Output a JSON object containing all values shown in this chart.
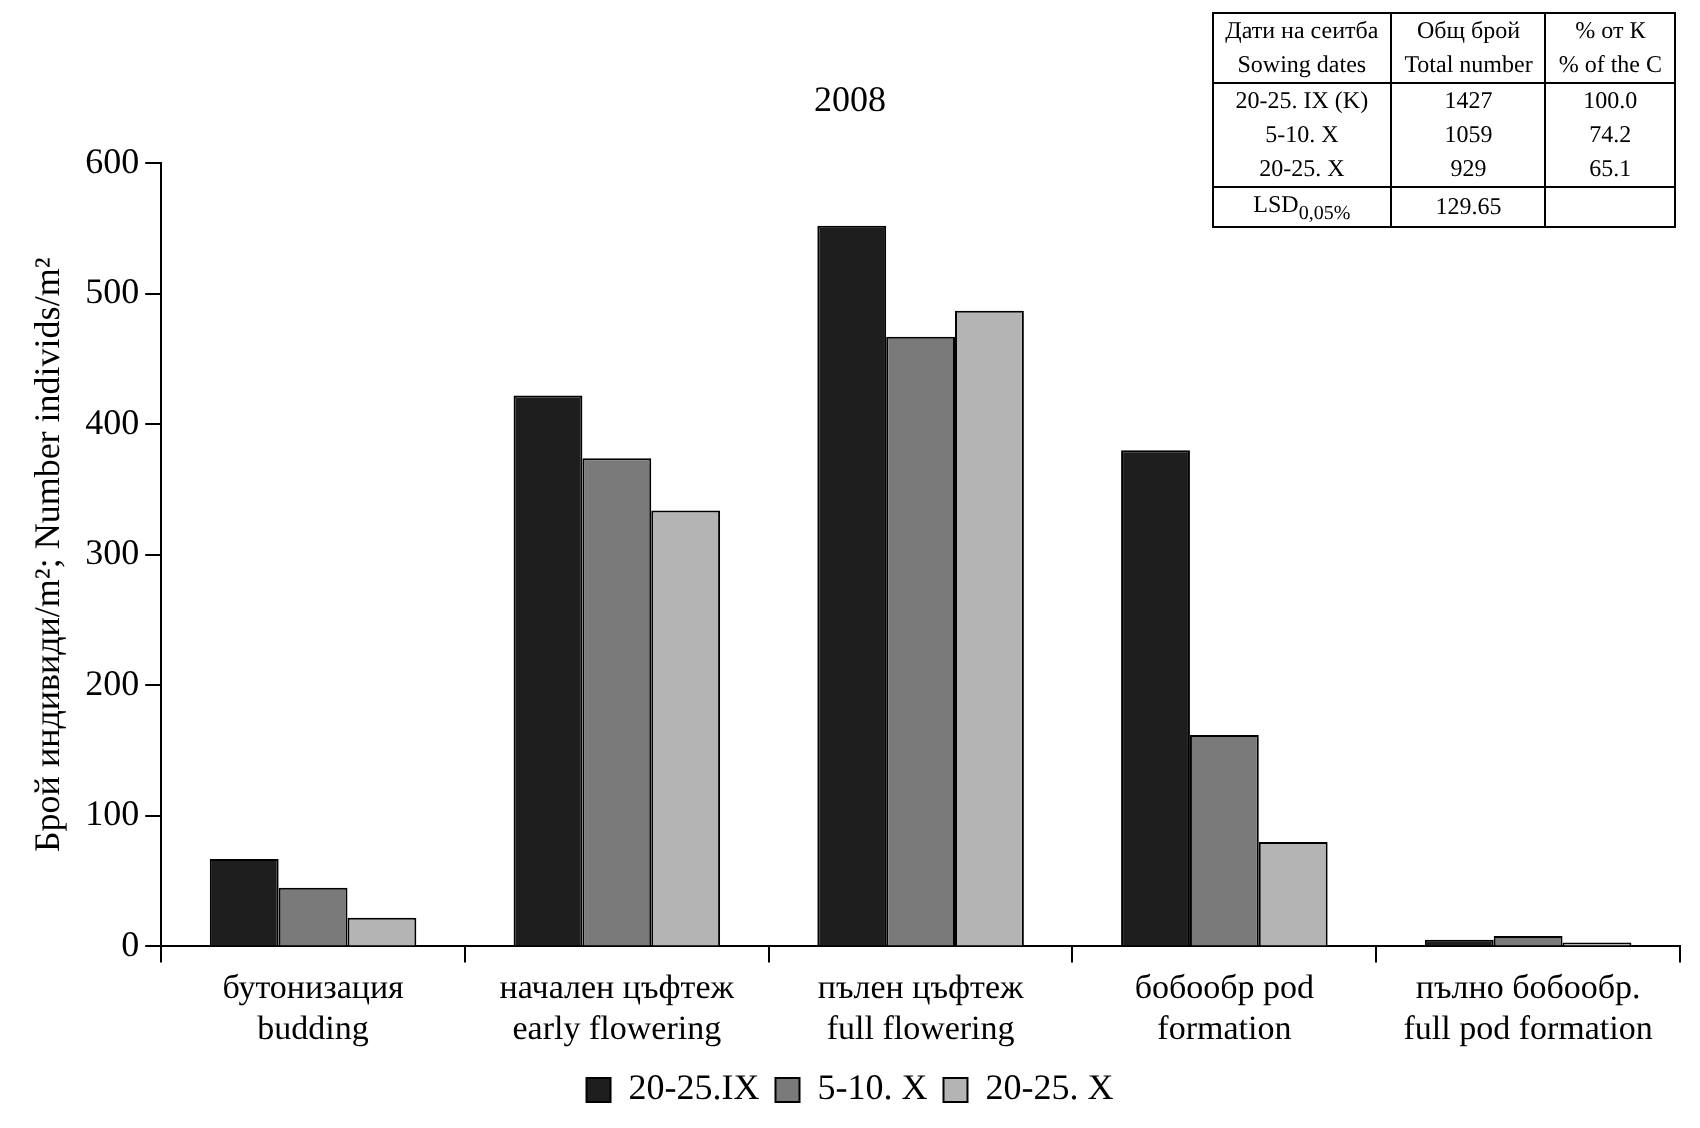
{
  "chart_data": {
    "type": "bar",
    "title": "2008",
    "categories": [
      "бутонизация budding",
      "начален цъфтеж early flowering",
      "пълен цъфтеж full flowering",
      "бобообр pod formation",
      "пълно бобообр. full pod formation"
    ],
    "series": [
      {
        "name": "20-25.IX",
        "color": "#1e1e1e",
        "values": [
          67,
          422,
          552,
          380,
          5
        ]
      },
      {
        "name": "5-10. X",
        "color": "#7a7a7a",
        "values": [
          45,
          374,
          467,
          162,
          8
        ]
      },
      {
        "name": "20-25. X",
        "color": "#b4b4b4",
        "values": [
          22,
          334,
          487,
          80,
          3
        ]
      }
    ],
    "ylabel": "Брой индивиди/m²; Number individs/m²",
    "ylim": [
      0,
      600
    ],
    "yticks": [
      0,
      100,
      200,
      300,
      400,
      500,
      600
    ],
    "grid": false,
    "legend": "bottom",
    "annotations": [
      "Дати на сеитба",
      "Общ брой",
      "% от К",
      "Sowing dates",
      "Total number",
      "% of the C",
      "20-25. IX (K)",
      "1427",
      "100.0",
      "5-10. X",
      "1059",
      "74.2",
      "20-25. X",
      "929",
      "65.1",
      "LSD$_{0,05%}$",
      "129.65"
    ]
  }
}
